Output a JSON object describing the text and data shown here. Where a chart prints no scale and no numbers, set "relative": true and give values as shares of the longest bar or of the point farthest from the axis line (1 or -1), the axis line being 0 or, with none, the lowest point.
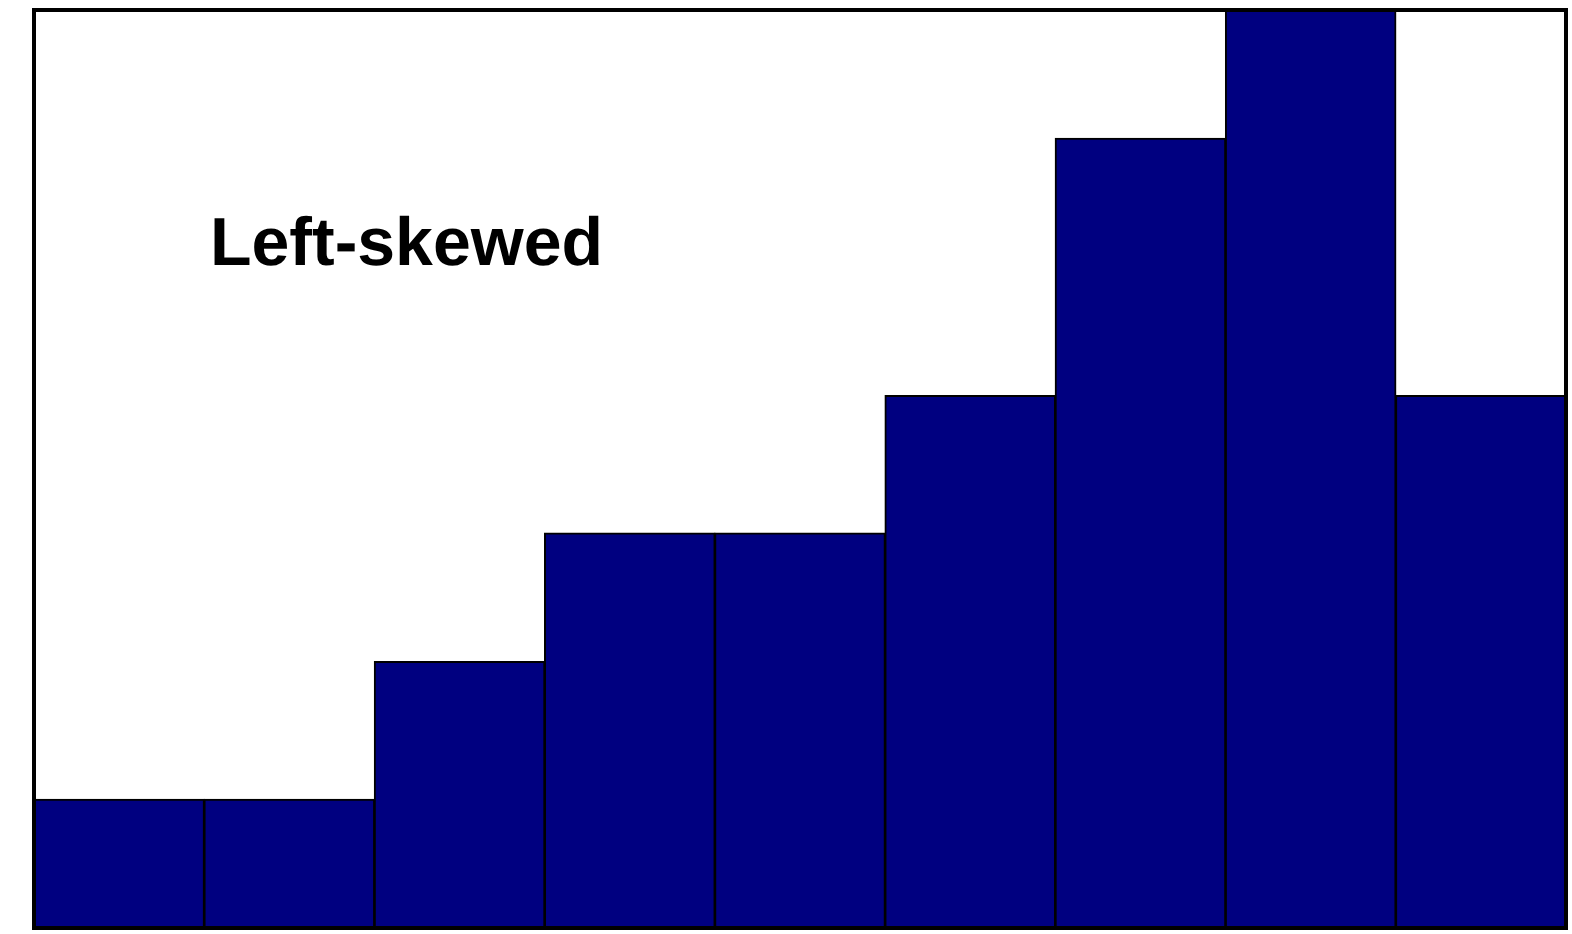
{
  "chart_data": {
    "type": "bar",
    "relative": true,
    "categories": [
      null,
      null,
      null,
      null,
      null,
      null,
      null,
      null,
      null
    ],
    "values": [
      0.14,
      0.14,
      0.29,
      0.43,
      0.43,
      0.58,
      0.86,
      1,
      0.58
    ],
    "color": "#000080",
    "annotations": [
      "Left-skewed"
    ]
  }
}
